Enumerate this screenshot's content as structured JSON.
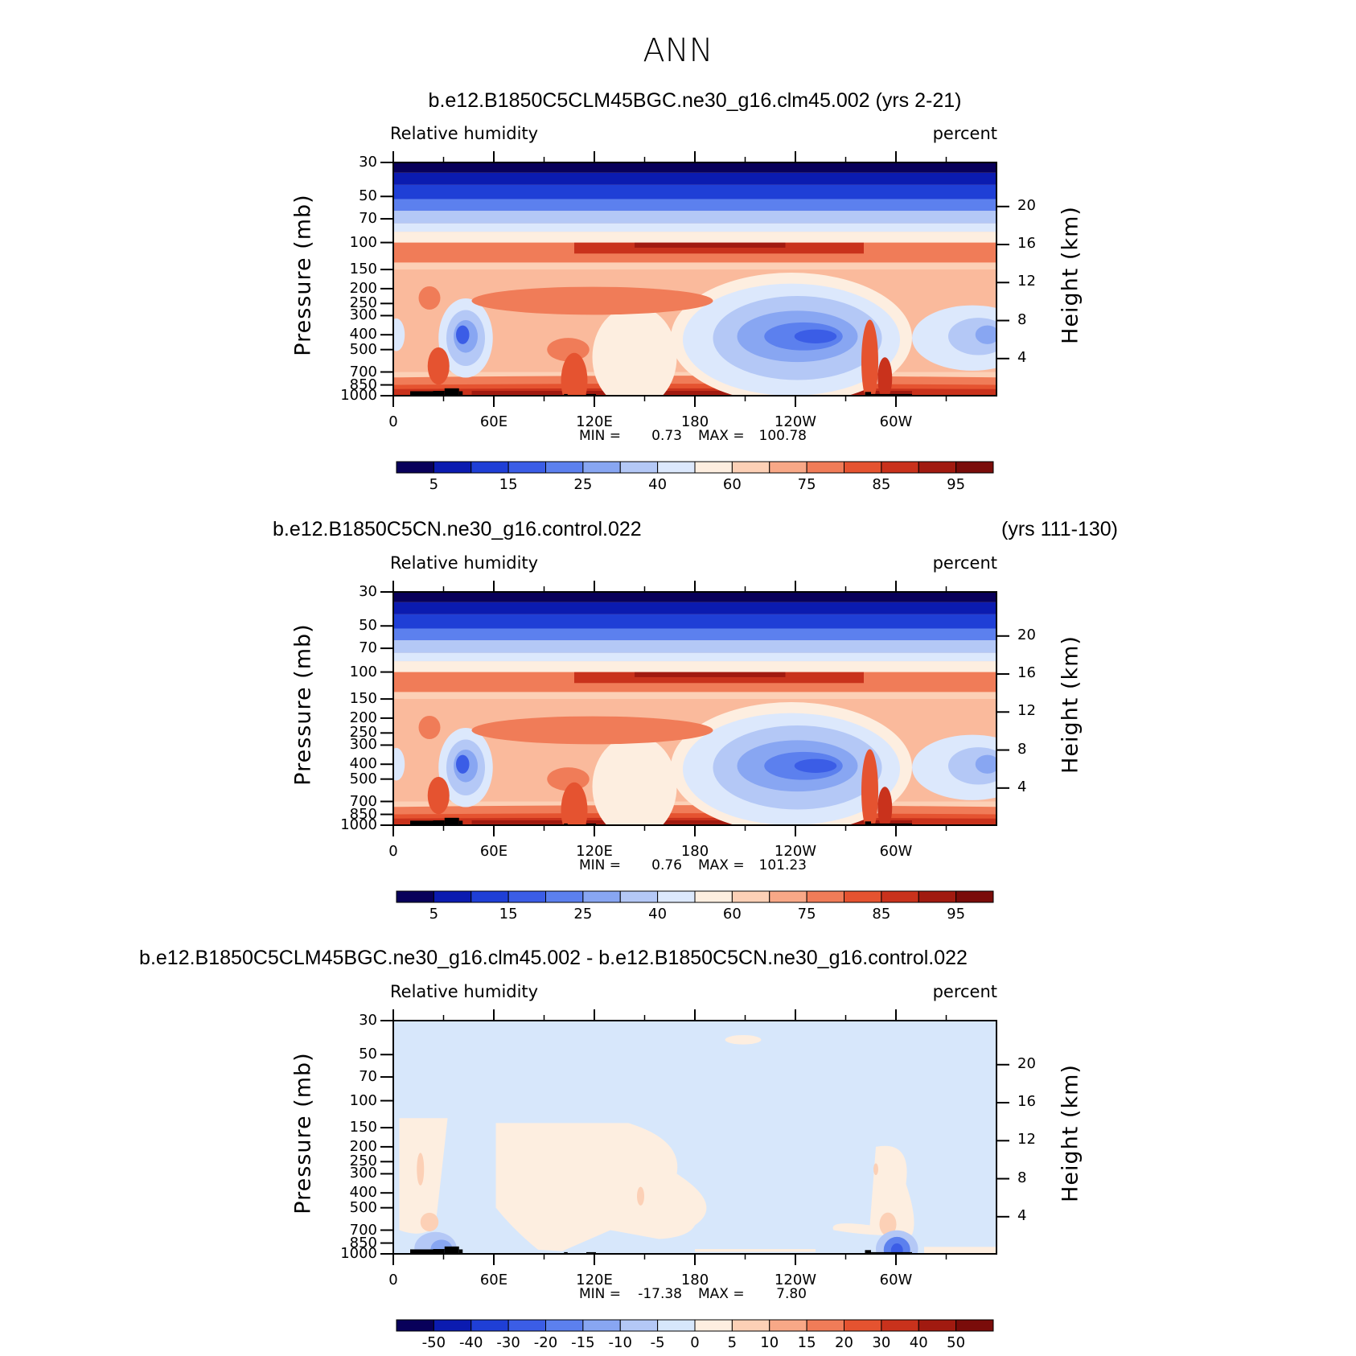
{
  "title": "ANN",
  "variable_label": "Relative humidity",
  "units_label": "percent",
  "left_axis_label": "Pressure (mb)",
  "right_axis_label": "Height (km)",
  "x_ticks": [
    "0",
    "60E",
    "120E",
    "180",
    "120W",
    "60W"
  ],
  "pressure_ticks": [
    "30",
    "50",
    "70",
    "100",
    "150",
    "200",
    "250",
    "300",
    "400",
    "500",
    "700",
    "850",
    "1000"
  ],
  "height_ticks": [
    "20",
    "16",
    "12",
    "8",
    "4"
  ],
  "colors": {
    "blue_red_16": [
      "#08005a",
      "#0b1bb0",
      "#1f3fd6",
      "#3b5de6",
      "#5c80ee",
      "#88a6f2",
      "#b4c8f6",
      "#dce8fc",
      "#fdeee0",
      "#fcd0b6",
      "#f8a887",
      "#f07c58",
      "#e55330",
      "#c9321c",
      "#a11a10",
      "#7a0c0a"
    ],
    "diff_16": [
      "#08005a",
      "#0b1bb0",
      "#1f3fd6",
      "#3b5de6",
      "#5c80ee",
      "#88a6f2",
      "#b4c8f6",
      "#d7e7fb",
      "#fdeee0",
      "#fcd0b6",
      "#f8a887",
      "#f07c58",
      "#e55330",
      "#c9321c",
      "#a11a10",
      "#7a0c0a"
    ],
    "land": "#000000"
  },
  "chart_data": [
    {
      "type": "heatmap",
      "title": "b.e12.B1850C5CLM45BGC.ne30_g16.clm45.002 (yrs 2-21)",
      "subtitle_left": "Relative humidity",
      "subtitle_right": "percent",
      "xlabel": "",
      "ylabel": "Pressure (mb)",
      "ylabel_right": "Height (km)",
      "x_ticks": [
        "0",
        "60E",
        "120E",
        "180",
        "120W",
        "60W"
      ],
      "x_range": [
        0,
        360
      ],
      "y_range_mb": [
        30,
        1000
      ],
      "min_label": "MIN =",
      "min": "0.73",
      "max_label": "MAX =",
      "max": "100.78",
      "colorbar_labels": [
        "5",
        "15",
        "25",
        "40",
        "60",
        "75",
        "85",
        "95"
      ],
      "colorbar_levels": [
        5,
        10,
        15,
        20,
        25,
        30,
        40,
        50,
        60,
        70,
        75,
        80,
        85,
        90,
        95
      ]
    },
    {
      "type": "heatmap",
      "title": "b.e12.B1850C5CN.ne30_g16.control.022",
      "title_right": "(yrs 111-130)",
      "subtitle_left": "Relative humidity",
      "subtitle_right": "percent",
      "xlabel": "",
      "ylabel": "Pressure (mb)",
      "ylabel_right": "Height (km)",
      "x_ticks": [
        "0",
        "60E",
        "120E",
        "180",
        "120W",
        "60W"
      ],
      "x_range": [
        0,
        360
      ],
      "y_range_mb": [
        30,
        1000
      ],
      "min_label": "MIN =",
      "min": "0.76",
      "max_label": "MAX =",
      "max": "101.23",
      "colorbar_labels": [
        "5",
        "15",
        "25",
        "40",
        "60",
        "75",
        "85",
        "95"
      ],
      "colorbar_levels": [
        5,
        10,
        15,
        20,
        25,
        30,
        40,
        50,
        60,
        70,
        75,
        80,
        85,
        90,
        95
      ]
    },
    {
      "type": "heatmap",
      "title": "b.e12.B1850C5CLM45BGC.ne30_g16.clm45.002 - b.e12.B1850C5CN.ne30_g16.control.022",
      "subtitle_left": "Relative humidity",
      "subtitle_right": "percent",
      "xlabel": "",
      "ylabel": "Pressure (mb)",
      "ylabel_right": "Height (km)",
      "x_ticks": [
        "0",
        "60E",
        "120E",
        "180",
        "120W",
        "60W"
      ],
      "x_range": [
        0,
        360
      ],
      "y_range_mb": [
        30,
        1000
      ],
      "min_label": "MIN =",
      "min": "-17.38",
      "max_label": "MAX =",
      "max": "7.80",
      "colorbar_labels": [
        "-50",
        "-40",
        "-30",
        "-20",
        "-15",
        "-10",
        "-5",
        "0",
        "5",
        "10",
        "15",
        "20",
        "30",
        "40",
        "50"
      ],
      "colorbar_levels": [
        -50,
        -40,
        -30,
        -20,
        -15,
        -10,
        -5,
        0,
        5,
        10,
        15,
        20,
        30,
        40,
        50
      ]
    }
  ]
}
